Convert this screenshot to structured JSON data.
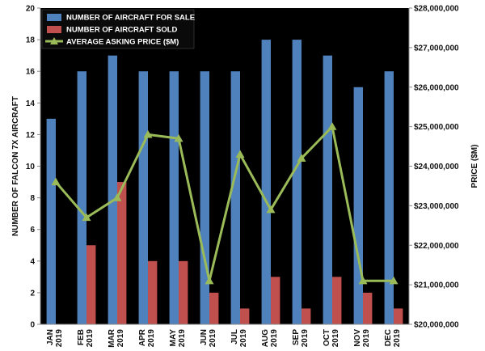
{
  "chart_data": {
    "type": "bar",
    "combo": "bar+line",
    "categories": [
      [
        "JAN",
        "2019"
      ],
      [
        "FEB",
        "2019"
      ],
      [
        "MAR",
        "2019"
      ],
      [
        "APR",
        "2019"
      ],
      [
        "MAY",
        "2019"
      ],
      [
        "JUN",
        "2019"
      ],
      [
        "JUL",
        "2019"
      ],
      [
        "AUG",
        "2019"
      ],
      [
        "SEP",
        "2019"
      ],
      [
        "OCT",
        "2019"
      ],
      [
        "NOV",
        "2019"
      ],
      [
        "DEC",
        "2019"
      ]
    ],
    "series": [
      {
        "name": "NUMBER OF AIRCRAFT FOR SALE",
        "type": "bar",
        "axis": "left",
        "color": "#4f81bd",
        "values": [
          13,
          16,
          17,
          16,
          16,
          16,
          16,
          18,
          18,
          17,
          15,
          16
        ]
      },
      {
        "name": "NUMBER OF AIRCRAFT SOLD",
        "type": "bar",
        "axis": "left",
        "color": "#c0504d",
        "values": [
          0,
          5,
          9,
          4,
          4,
          2,
          1,
          3,
          1,
          3,
          2,
          1
        ]
      },
      {
        "name": "AVERAGE ASKING PRICE ($M)",
        "type": "line",
        "axis": "right",
        "color": "#9bbb59",
        "values": [
          23600000,
          22700000,
          23200000,
          24800000,
          24700000,
          21100000,
          24300000,
          22900000,
          24200000,
          25000000,
          21100000,
          21100000
        ]
      }
    ],
    "title": "",
    "xlabel": "",
    "ylabel": "NUMBER OF FALCON 7X AIRCRAFT",
    "ylabel_right": "PRICE ($M)",
    "ylim": [
      0,
      20
    ],
    "yticks": [
      0,
      2,
      4,
      6,
      8,
      10,
      12,
      14,
      16,
      18,
      20
    ],
    "ylim_right": [
      20000000,
      28000000
    ],
    "yticks_right": [
      "$20,000,000",
      "$21,000,000",
      "$22,000,000",
      "$23,000,000",
      "$24,000,000",
      "$25,000,000",
      "$26,000,000",
      "$27,000,000",
      "$28,000,000"
    ],
    "grid": false,
    "legend": "top-left",
    "plot_background": "#000000"
  }
}
